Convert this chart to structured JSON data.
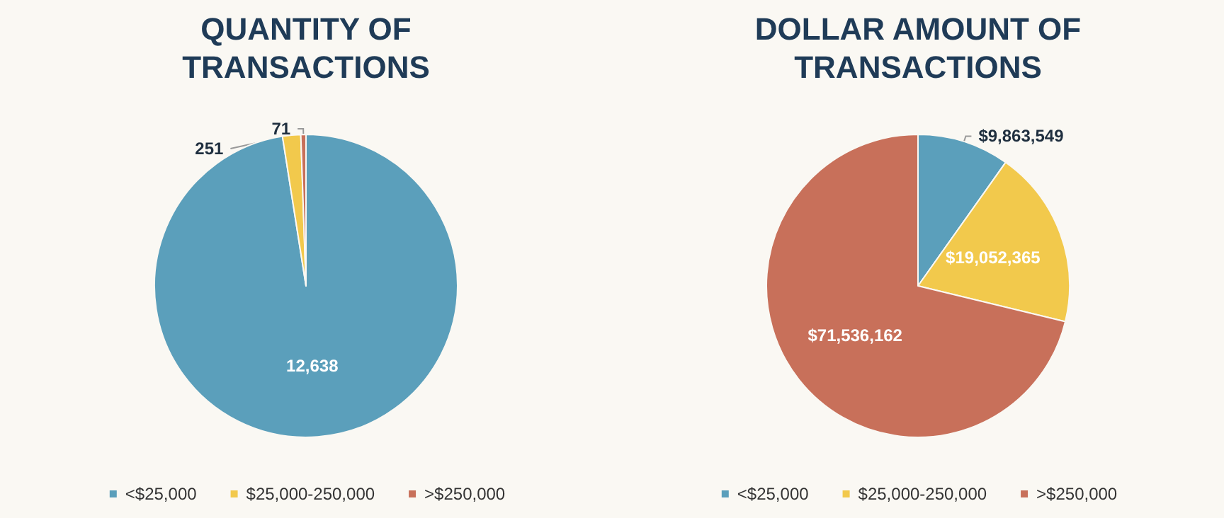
{
  "chart_data": [
    {
      "type": "pie",
      "title": "QUANTITY OF\nTRANSACTIONS",
      "categories": [
        "<$25,000",
        "$25,000-250,000",
        ">$250,000"
      ],
      "values": [
        12638,
        251,
        71
      ],
      "colors": [
        "#5b9fbb",
        "#f2c94c",
        "#c8705a"
      ],
      "value_labels": [
        "12,638",
        "251",
        "71"
      ],
      "legend": "bottom"
    },
    {
      "type": "pie",
      "title": "DOLLAR AMOUNT OF\nTRANSACTIONS",
      "categories": [
        "<$25,000",
        "$25,000-250,000",
        ">$250,000"
      ],
      "values": [
        9863549,
        19052365,
        71536162
      ],
      "colors": [
        "#5b9fbb",
        "#f2c94c",
        "#c8705a"
      ],
      "value_labels": [
        "$9,863,549",
        "$19,052,365",
        "$71,536,162"
      ],
      "legend": "bottom"
    }
  ]
}
